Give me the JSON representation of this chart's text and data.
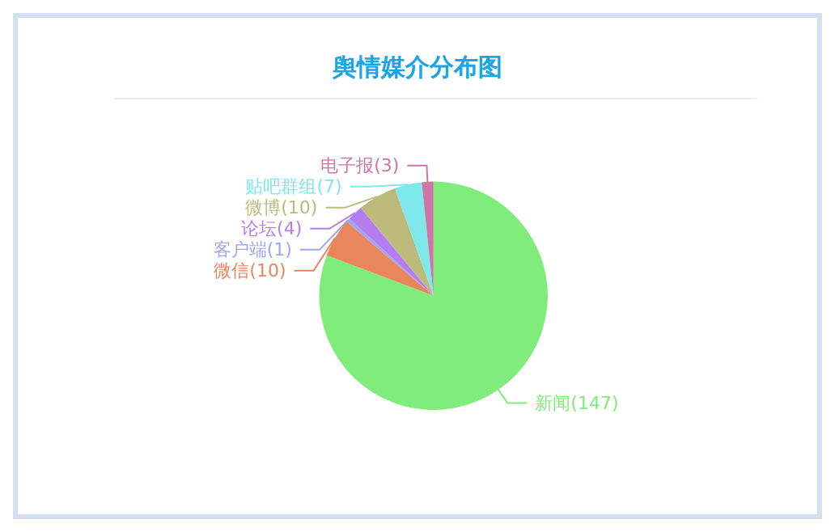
{
  "chart_data": {
    "type": "pie",
    "title": "舆情媒介分布图",
    "categories": [
      "新闻",
      "微信",
      "客户端",
      "论坛",
      "微博",
      "贴吧群组",
      "电子报"
    ],
    "values": [
      147,
      10,
      1,
      4,
      10,
      7,
      3
    ],
    "colors": [
      "#80ec7c",
      "#e8875c",
      "#9fa6f0",
      "#b47ef0",
      "#bcbb7c",
      "#7ee8ea",
      "#cc76a4"
    ],
    "value_labels": [
      "(147)",
      "(10)",
      "(1)",
      "(4)",
      "(10)",
      "(7)",
      "(3)"
    ],
    "legend": false
  }
}
